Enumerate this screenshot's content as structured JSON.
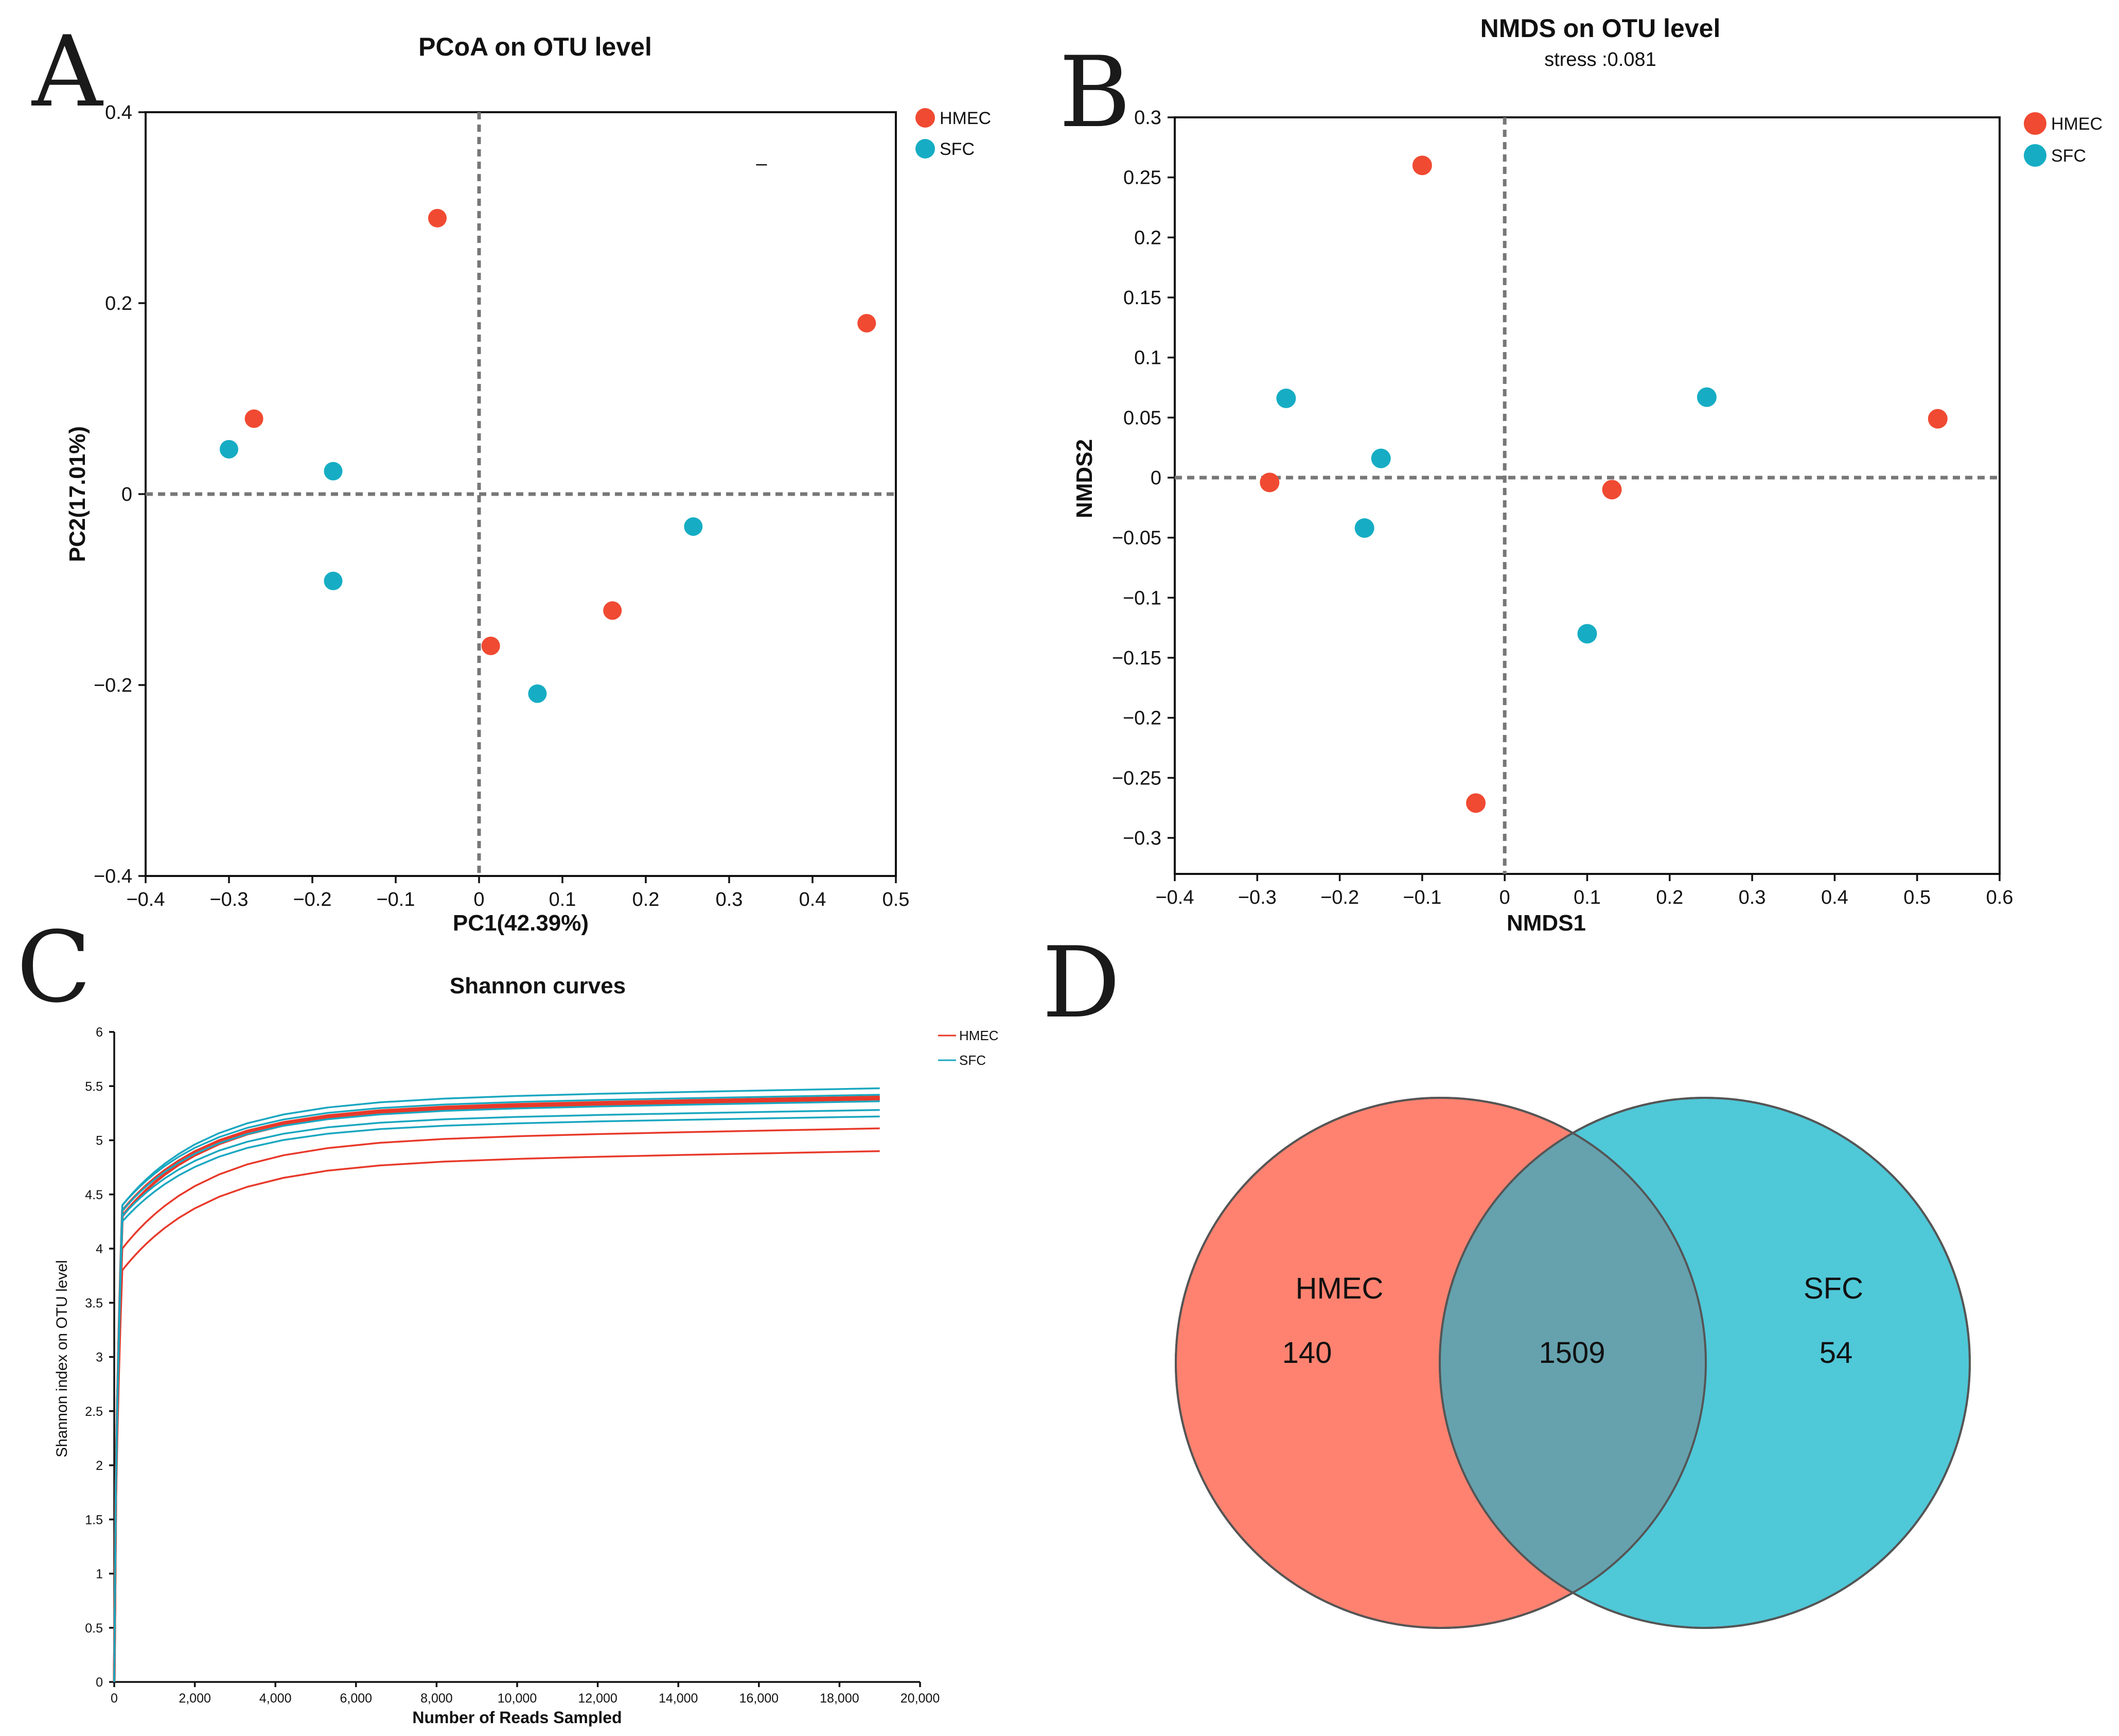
{
  "colors": {
    "hmec": "#f04a32",
    "sfc": "#16adc4",
    "curve_hmec": "#e8392a",
    "curve_sfc": "#1aa7c0",
    "venn_hmec": "#ff8270",
    "venn_sfc": "#4fc8d8",
    "venn_overlap": "#65a2ae"
  },
  "panels": {
    "a": "A",
    "b": "B",
    "c": "C",
    "d": "D"
  },
  "chart_data": [
    {
      "id": "pcoa",
      "type": "scatter",
      "title": "PCoA on OTU level",
      "xlabel": "PC1(42.39%)",
      "ylabel": "PC2(17.01%)",
      "xlim": [
        -0.4,
        0.5
      ],
      "ylim": [
        -0.4,
        0.4
      ],
      "xticks": [
        -0.4,
        -0.3,
        -0.2,
        -0.1,
        0,
        0.1,
        0.2,
        0.3,
        0.4,
        0.5
      ],
      "xtick_labels": [
        "−0.4",
        "−0.3",
        "−0.2",
        "−0.1",
        "0",
        "0.1",
        "0.2",
        "0.3",
        "0.4",
        "0.5"
      ],
      "yticks": [
        -0.4,
        -0.2,
        0,
        0.2,
        0.4
      ],
      "ytick_labels": [
        "−0.4",
        "−0.2",
        "0",
        "0.2",
        "0.4"
      ],
      "legend": [
        "HMEC",
        "SFC"
      ],
      "legend_position": "outside-top-right",
      "annotation": "–",
      "series": [
        {
          "name": "HMEC",
          "points": [
            [
              -0.05,
              0.289
            ],
            [
              0.465,
              0.179
            ],
            [
              -0.27,
              0.079
            ],
            [
              0.16,
              -0.122
            ],
            [
              0.014,
              -0.159
            ]
          ]
        },
        {
          "name": "SFC",
          "points": [
            [
              -0.3,
              0.047
            ],
            [
              -0.175,
              0.024
            ],
            [
              -0.175,
              -0.091
            ],
            [
              0.257,
              -0.034
            ],
            [
              0.07,
              -0.209
            ]
          ]
        }
      ]
    },
    {
      "id": "nmds",
      "type": "scatter",
      "title": "NMDS on OTU level",
      "subtitle": "stress :0.081",
      "xlabel": "NMDS1",
      "ylabel": "NMDS2",
      "xlim": [
        -0.4,
        0.6
      ],
      "ylim": [
        -0.33,
        0.3
      ],
      "xticks": [
        -0.4,
        -0.3,
        -0.2,
        -0.1,
        0,
        0.1,
        0.2,
        0.3,
        0.4,
        0.5,
        0.6
      ],
      "xtick_labels": [
        "−0.4",
        "−0.3",
        "−0.2",
        "−0.1",
        "0",
        "0.1",
        "0.2",
        "0.3",
        "0.4",
        "0.5",
        "0.6"
      ],
      "yticks": [
        0.3,
        0.25,
        0.2,
        0.15,
        0.1,
        0.05,
        0,
        -0.05,
        -0.1,
        -0.15,
        -0.2,
        -0.25,
        -0.3
      ],
      "ytick_labels": [
        "0.3",
        "0.25",
        "0.2",
        "0.15",
        "0.1",
        "0.05",
        "0",
        "−0.05",
        "−0.1",
        "−0.15",
        "−0.2",
        "−0.25",
        "−0.3"
      ],
      "legend": [
        "HMEC",
        "SFC"
      ],
      "legend_position": "outside-top-right",
      "series": [
        {
          "name": "HMEC",
          "points": [
            [
              -0.1,
              0.26
            ],
            [
              0.525,
              0.049
            ],
            [
              -0.285,
              -0.004
            ],
            [
              0.13,
              -0.01
            ],
            [
              -0.035,
              -0.271
            ]
          ]
        },
        {
          "name": "SFC",
          "points": [
            [
              -0.265,
              0.066
            ],
            [
              0.245,
              0.067
            ],
            [
              -0.15,
              0.016
            ],
            [
              -0.17,
              -0.042
            ],
            [
              0.1,
              -0.13
            ]
          ]
        }
      ]
    },
    {
      "id": "shannon",
      "type": "line",
      "title": "Shannon curves",
      "xlabel": "Number of Reads Sampled",
      "ylabel": "Shannon index on OTU level",
      "xlim": [
        0,
        20000
      ],
      "ylim": [
        0,
        6
      ],
      "xticks": [
        0,
        2000,
        4000,
        6000,
        8000,
        10000,
        12000,
        14000,
        16000,
        18000,
        20000
      ],
      "xtick_labels": [
        "0",
        "2,000",
        "4,000",
        "6,000",
        "8,000",
        "10,000",
        "12,000",
        "14,000",
        "16,000",
        "18,000",
        "20,000"
      ],
      "yticks": [
        0,
        0.5,
        1,
        1.5,
        2,
        2.5,
        3,
        3.5,
        4,
        4.5,
        5,
        5.5,
        6
      ],
      "ytick_labels": [
        "0",
        "0.5",
        "1",
        "1.5",
        "2",
        "2.5",
        "3",
        "3.5",
        "4",
        "4.5",
        "5",
        "5.5",
        "6"
      ],
      "legend": [
        "HMEC",
        "SFC"
      ],
      "legend_position": "outside-top-right",
      "x_max_reads": 19000,
      "series": [
        {
          "group": "HMEC",
          "plateau": 4.9,
          "start": 3.8
        },
        {
          "group": "HMEC",
          "plateau": 5.11,
          "start": 4.0
        },
        {
          "group": "HMEC",
          "plateau": 5.38,
          "start": 4.3
        },
        {
          "group": "HMEC",
          "plateau": 5.39,
          "start": 4.3
        },
        {
          "group": "HMEC",
          "plateau": 5.4,
          "start": 4.35
        },
        {
          "group": "SFC",
          "plateau": 5.48,
          "start": 4.4
        },
        {
          "group": "SFC",
          "plateau": 5.42,
          "start": 4.4
        },
        {
          "group": "SFC",
          "plateau": 5.36,
          "start": 4.35
        },
        {
          "group": "SFC",
          "plateau": 5.28,
          "start": 4.3
        },
        {
          "group": "SFC",
          "plateau": 5.22,
          "start": 4.25
        }
      ]
    },
    {
      "id": "venn",
      "type": "venn",
      "sets": [
        {
          "name": "HMEC",
          "unique": "140"
        },
        {
          "name": "SFC",
          "unique": "54"
        }
      ],
      "shared": "1509"
    }
  ]
}
